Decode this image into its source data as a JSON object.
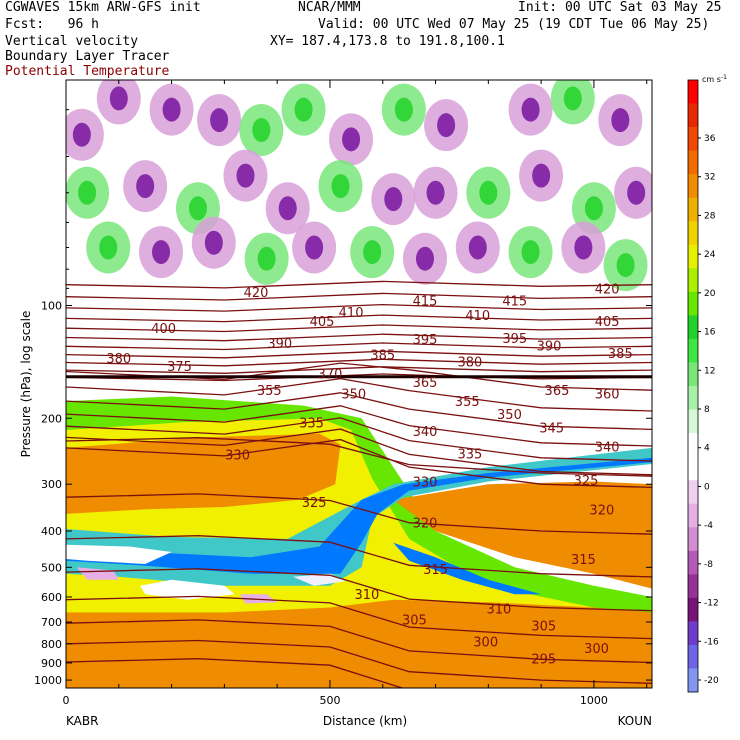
{
  "header": {
    "line1_left": "CGWAVES 15km ARW-GFS init",
    "line1_mid": "NCAR/MMM",
    "line1_right": "Init: 00 UTC Sat 03 May 25",
    "line2_left": "Fcst:   96 h",
    "line2_right": "Valid: 00 UTC Wed 07 May 25 (19 CDT Tue 06 May 25)",
    "line3_left": "Vertical velocity",
    "line3_right": "XY= 187.4,173.8 to 191.8,100.1",
    "line4_left": "Boundary Layer Tracer",
    "line5_left": "Potential Temperature"
  },
  "chart_data": {
    "type": "heatmap",
    "title": "Vertical velocity",
    "xlabel": "Distance (km)",
    "ylabel": "Pressure (hPa), log scale",
    "xlim": [
      0,
      1110
    ],
    "ylim": [
      1050,
      25
    ],
    "y_scale": "log",
    "x_ticks": [
      0,
      500,
      1000
    ],
    "x_tick_labels": [
      "0",
      "500",
      "1000"
    ],
    "y_ticks": [
      100,
      200,
      300,
      400,
      500,
      600,
      700,
      800,
      900,
      1000
    ],
    "y_tick_labels": [
      "100",
      "200",
      "300",
      "400",
      "500",
      "600",
      "700",
      "800",
      "900",
      "1000"
    ],
    "endpoint_labels": {
      "left": "KABR",
      "right": "KOUN"
    },
    "colorbar": {
      "unit_label": "cm s",
      "unit_exponent": "-1",
      "tick_labels": [
        "36",
        "32",
        "28",
        "24",
        "20",
        "16",
        "12",
        "8",
        "4",
        "0",
        "-4",
        "-8",
        "-12",
        "-16",
        "-20"
      ],
      "colors": [
        "#ff0000",
        "#e82800",
        "#f04800",
        "#f06a00",
        "#f08c00",
        "#f0b000",
        "#f0d200",
        "#e6f000",
        "#aaf000",
        "#66e600",
        "#22d22a",
        "#40e640",
        "#7ae67a",
        "#a8f0a8",
        "#d6f8d6",
        "#ffffff",
        "#ffffff",
        "#f0d0f0",
        "#e6b0e6",
        "#d28cd2",
        "#b45ab4",
        "#963296",
        "#781478",
        "#6e3cc8",
        "#6e64e6",
        "#8296f0"
      ]
    },
    "shading": {
      "wind_vertical_velocity": {
        "positive_color": "#7ae67a",
        "negative_color": "#d8a0d8",
        "min_color": "#7814a0"
      },
      "boundary_layer_tracer": {
        "orange": "#f08c00",
        "yellow": "#f0f000",
        "green": "#66e600",
        "cyan": "#40c8c8",
        "blue": "#0078ff"
      }
    },
    "contours": {
      "field": "Potential Temperature",
      "color": "#7a1010",
      "levels": [
        295,
        300,
        305,
        310,
        315,
        320,
        325,
        330,
        335,
        340,
        345,
        350,
        355,
        360,
        365,
        370,
        375,
        380,
        385,
        390,
        395,
        400,
        405,
        410,
        415,
        420
      ],
      "labels": [
        {
          "text": "420",
          "x": 360,
          "p": 92
        },
        {
          "text": "420",
          "x": 1025,
          "p": 90
        },
        {
          "text": "415",
          "x": 680,
          "p": 97
        },
        {
          "text": "415",
          "x": 850,
          "p": 97
        },
        {
          "text": "410",
          "x": 540,
          "p": 104
        },
        {
          "text": "410",
          "x": 780,
          "p": 106
        },
        {
          "text": "405",
          "x": 485,
          "p": 110
        },
        {
          "text": "405",
          "x": 1025,
          "p": 110
        },
        {
          "text": "400",
          "x": 185,
          "p": 115
        },
        {
          "text": "395",
          "x": 680,
          "p": 123
        },
        {
          "text": "395",
          "x": 850,
          "p": 122
        },
        {
          "text": "390",
          "x": 405,
          "p": 126
        },
        {
          "text": "390",
          "x": 915,
          "p": 128
        },
        {
          "text": "385",
          "x": 600,
          "p": 135
        },
        {
          "text": "385",
          "x": 1050,
          "p": 134
        },
        {
          "text": "380",
          "x": 100,
          "p": 138
        },
        {
          "text": "380",
          "x": 765,
          "p": 141
        },
        {
          "text": "375",
          "x": 215,
          "p": 145
        },
        {
          "text": "370",
          "x": 500,
          "p": 152
        },
        {
          "text": "365",
          "x": 680,
          "p": 160
        },
        {
          "text": "365",
          "x": 930,
          "p": 168
        },
        {
          "text": "360",
          "x": 1025,
          "p": 172
        },
        {
          "text": "355",
          "x": 385,
          "p": 168
        },
        {
          "text": "355",
          "x": 760,
          "p": 180
        },
        {
          "text": "350",
          "x": 545,
          "p": 172
        },
        {
          "text": "350",
          "x": 840,
          "p": 195
        },
        {
          "text": "345",
          "x": 920,
          "p": 212
        },
        {
          "text": "340",
          "x": 680,
          "p": 216
        },
        {
          "text": "340",
          "x": 1025,
          "p": 238
        },
        {
          "text": "335",
          "x": 465,
          "p": 205
        },
        {
          "text": "335",
          "x": 765,
          "p": 248
        },
        {
          "text": "330",
          "x": 325,
          "p": 250
        },
        {
          "text": "330",
          "x": 680,
          "p": 295
        },
        {
          "text": "325",
          "x": 470,
          "p": 335
        },
        {
          "text": "325",
          "x": 985,
          "p": 292
        },
        {
          "text": "320",
          "x": 680,
          "p": 380
        },
        {
          "text": "320",
          "x": 1015,
          "p": 350
        },
        {
          "text": "315",
          "x": 700,
          "p": 505
        },
        {
          "text": "315",
          "x": 980,
          "p": 475
        },
        {
          "text": "310",
          "x": 570,
          "p": 590
        },
        {
          "text": "310",
          "x": 820,
          "p": 645
        },
        {
          "text": "305",
          "x": 660,
          "p": 690
        },
        {
          "text": "305",
          "x": 905,
          "p": 715
        },
        {
          "text": "300",
          "x": 795,
          "p": 790
        },
        {
          "text": "300",
          "x": 1005,
          "p": 820
        },
        {
          "text": "295",
          "x": 905,
          "p": 875
        }
      ]
    }
  }
}
